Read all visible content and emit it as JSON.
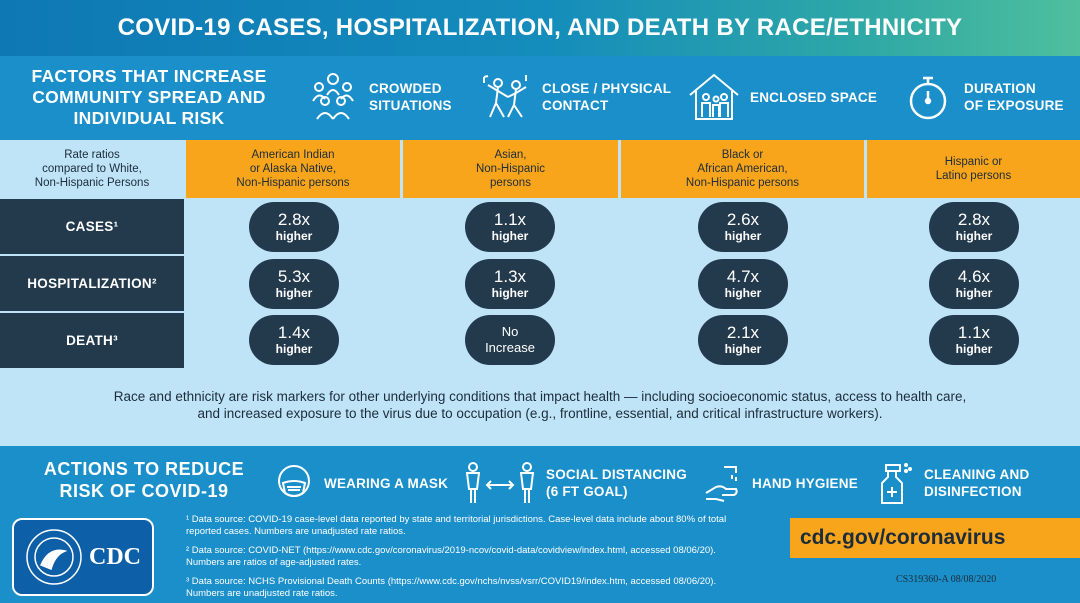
{
  "header": {
    "title": "COVID-19 CASES, HOSPITALIZATION, AND DEATH BY RACE/ETHNICITY"
  },
  "factors": {
    "title": "FACTORS THAT INCREASE COMMUNITY SPREAD AND INDIVIDUAL RISK",
    "items": [
      {
        "label_1": "CROWDED",
        "label_2": "SITUATIONS",
        "icon": "crowd-icon"
      },
      {
        "label_1": "CLOSE / PHYSICAL",
        "label_2": "CONTACT",
        "icon": "dancing-icon"
      },
      {
        "label_1": "ENCLOSED SPACE",
        "label_2": "",
        "icon": "house-family-icon"
      },
      {
        "label_1": "DURATION",
        "label_2": "OF EXPOSURE",
        "icon": "stopwatch-icon"
      }
    ]
  },
  "table": {
    "rate_header": [
      "Rate ratios",
      "compared to White,",
      "Non-Hispanic Persons"
    ],
    "columns": [
      {
        "lines": [
          "American Indian",
          "or Alaska Native,",
          "Non-Hispanic persons"
        ]
      },
      {
        "lines": [
          "Asian,",
          "Non-Hispanic",
          "persons"
        ]
      },
      {
        "lines": [
          "Black or",
          "African American,",
          "Non-Hispanic persons"
        ]
      },
      {
        "lines": [
          "Hispanic or",
          "Latino persons"
        ]
      }
    ],
    "rows": [
      {
        "label": "CASES¹",
        "values": [
          [
            "2.8x",
            "higher"
          ],
          [
            "1.1x",
            "higher"
          ],
          [
            "2.6x",
            "higher"
          ],
          [
            "2.8x",
            "higher"
          ]
        ]
      },
      {
        "label": "HOSPITALIZATION²",
        "values": [
          [
            "5.3x",
            "higher"
          ],
          [
            "1.3x",
            "higher"
          ],
          [
            "4.7x",
            "higher"
          ],
          [
            "4.6x",
            "higher"
          ]
        ]
      },
      {
        "label": "DEATH³",
        "values": [
          [
            "1.4x",
            "higher"
          ],
          [
            "No",
            "Increase"
          ],
          [
            "2.1x",
            "higher"
          ],
          [
            "1.1x",
            "higher"
          ]
        ]
      }
    ]
  },
  "note": {
    "line_1": "Race and ethnicity are risk markers for other underlying conditions that impact health — including socioeconomic status, access to health care,",
    "line_2": "and increased exposure to the virus due to occupation (e.g., frontline, essential, and critical infrastructure workers)."
  },
  "actions": {
    "title": "ACTIONS TO REDUCE RISK OF COVID-19",
    "items": [
      {
        "label_1": "WEARING A MASK",
        "label_2": "",
        "icon": "mask-icon"
      },
      {
        "label_1": "SOCIAL DISTANCING",
        "label_2": "(6 FT GOAL)",
        "icon": "distancing-icon"
      },
      {
        "label_1": "HAND HYGIENE",
        "label_2": "",
        "icon": "handwash-icon"
      },
      {
        "label_1": "CLEANING AND",
        "label_2": "DISINFECTION",
        "icon": "spray-bottle-icon"
      }
    ]
  },
  "footnotes": [
    {
      "l1": "¹ Data source: COVID-19 case-level data reported by state and territorial jurisdictions. Case-level data include about 80% of total",
      "l2": "reported cases. Numbers are unadjusted rate ratios."
    },
    {
      "l1": "² Data source: COVID-NET (https://www.cdc.gov/coronavirus/2019-ncov/covid-data/covidview/index.html, accessed 08/06/20).",
      "l2": "Numbers are ratios of age-adjusted rates."
    },
    {
      "l1": "³ Data source: NCHS Provisional Death Counts (https://www.cdc.gov/nchs/nvss/vsrr/COVID19/index.htm, accessed 08/06/20).",
      "l2": "Numbers are unadjusted rate ratios."
    }
  ],
  "logo": {
    "text": "CDC"
  },
  "url": "cdc.gov/coronavirus",
  "code": "CS319360-A 08/08/2020",
  "colors": {
    "blue": "#1a8fc9",
    "navy": "#233a4d",
    "orange": "#f9a51b",
    "light": "#bfe4f7"
  }
}
